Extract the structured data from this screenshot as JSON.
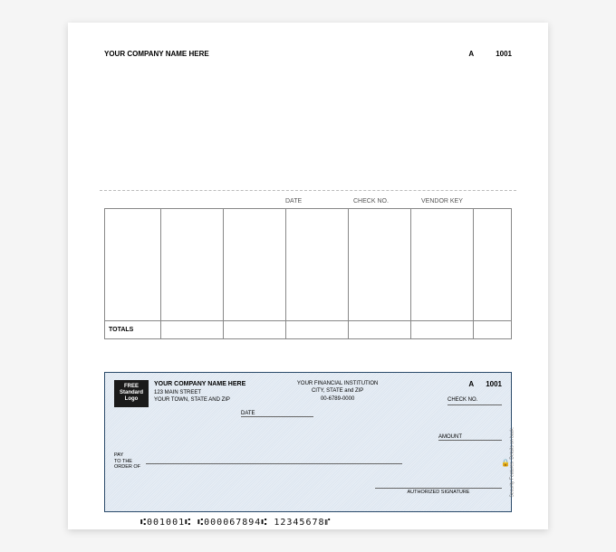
{
  "top_stub": {
    "company": "YOUR COMPANY NAME HERE",
    "series": "A",
    "number": "1001"
  },
  "mid_stub": {
    "headers": [
      "DATE",
      "CHECK NO.",
      "VENDOR KEY"
    ],
    "totals_label": "TOTALS"
  },
  "check": {
    "logo": {
      "line1": "FREE",
      "line2": "Standard",
      "line3": "Logo"
    },
    "company": {
      "name": "YOUR COMPANY NAME HERE",
      "street": "123 MAIN STREET",
      "city": "YOUR TOWN, STATE AND ZIP"
    },
    "bank": {
      "name": "YOUR FINANCIAL INSTITUTION",
      "city": "CITY, STATE and ZIP",
      "routing": "00-6789-0000"
    },
    "series": "A",
    "number": "1001",
    "checkno_label": "CHECK NO.",
    "date_label": "DATE",
    "amount_label": "AMOUNT",
    "payto_label": "PAY\nTO THE\nORDER OF",
    "signature_label": "AUTHORIZED SIGNATURE",
    "security_text": "Security Features. Details on back.",
    "micr": "⑆001001⑆  ⑆000067894⑆   12345678⑈"
  },
  "colors": {
    "check_bg1": "#e8eef5",
    "check_bg2": "#dde6f0",
    "check_border": "#2a4a6a",
    "grid_border": "#888888",
    "page_bg": "#ffffff"
  }
}
